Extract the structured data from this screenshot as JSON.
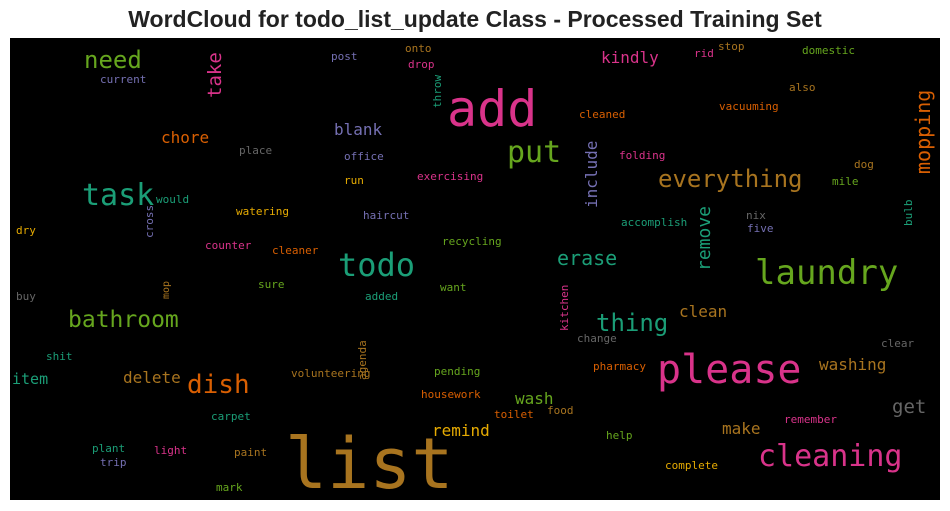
{
  "title": "WordCloud for todo_list_update Class - Processed Training Set",
  "words": [
    {
      "text": "list",
      "color": "#a8741f"
    },
    {
      "text": "add",
      "color": "#d9338a"
    },
    {
      "text": "please",
      "color": "#d9338a"
    },
    {
      "text": "todo",
      "color": "#1b9e77"
    },
    {
      "text": "laundry",
      "color": "#66a61e"
    },
    {
      "text": "task",
      "color": "#1b9e77"
    },
    {
      "text": "cleaning",
      "color": "#d9338a"
    },
    {
      "text": "put",
      "color": "#66a61e"
    },
    {
      "text": "dish",
      "color": "#d95f02"
    },
    {
      "text": "everything",
      "color": "#a8741f"
    },
    {
      "text": "bathroom",
      "color": "#66a61e"
    },
    {
      "text": "thing",
      "color": "#1b9e77"
    },
    {
      "text": "need",
      "color": "#66a61e"
    },
    {
      "text": "mopping",
      "color": "#d95f02"
    },
    {
      "text": "take",
      "color": "#d9338a"
    },
    {
      "text": "remove",
      "color": "#1b9e77"
    },
    {
      "text": "erase",
      "color": "#1b9e77"
    },
    {
      "text": "include",
      "color": "#7570b3"
    },
    {
      "text": "get",
      "color": "#666666"
    },
    {
      "text": "kindly",
      "color": "#d9338a"
    },
    {
      "text": "washing",
      "color": "#a8741f"
    },
    {
      "text": "chore",
      "color": "#d95f02"
    },
    {
      "text": "blank",
      "color": "#7570b3"
    },
    {
      "text": "clean",
      "color": "#a8741f"
    },
    {
      "text": "wash",
      "color": "#66a61e"
    },
    {
      "text": "delete",
      "color": "#a8741f"
    },
    {
      "text": "item",
      "color": "#1b9e77"
    },
    {
      "text": "remind",
      "color": "#e6ab02"
    },
    {
      "text": "make",
      "color": "#a8741f"
    },
    {
      "text": "onto",
      "color": "#a8741f"
    },
    {
      "text": "post",
      "color": "#7570b3"
    },
    {
      "text": "drop",
      "color": "#d9338a"
    },
    {
      "text": "rid",
      "color": "#d9338a"
    },
    {
      "text": "stop",
      "color": "#a8741f"
    },
    {
      "text": "domestic",
      "color": "#66a61e"
    },
    {
      "text": "current",
      "color": "#7570b3"
    },
    {
      "text": "throw",
      "color": "#1b9e77"
    },
    {
      "text": "also",
      "color": "#a8741f"
    },
    {
      "text": "vacuuming",
      "color": "#d95f02"
    },
    {
      "text": "cleaned",
      "color": "#d95f02"
    },
    {
      "text": "place",
      "color": "#666666"
    },
    {
      "text": "office",
      "color": "#7570b3"
    },
    {
      "text": "folding",
      "color": "#d9338a"
    },
    {
      "text": "dog",
      "color": "#a8741f"
    },
    {
      "text": "run",
      "color": "#e6ab02"
    },
    {
      "text": "exercising",
      "color": "#d9338a"
    },
    {
      "text": "mile",
      "color": "#66a61e"
    },
    {
      "text": "would",
      "color": "#1b9e77"
    },
    {
      "text": "watering",
      "color": "#e6ab02"
    },
    {
      "text": "haircut",
      "color": "#7570b3"
    },
    {
      "text": "accomplish",
      "color": "#1b9e77"
    },
    {
      "text": "nix",
      "color": "#666666"
    },
    {
      "text": "five",
      "color": "#7570b3"
    },
    {
      "text": "bulb",
      "color": "#1b9e77"
    },
    {
      "text": "dry",
      "color": "#e6ab02"
    },
    {
      "text": "cross",
      "color": "#7570b3"
    },
    {
      "text": "counter",
      "color": "#d9338a"
    },
    {
      "text": "cleaner",
      "color": "#d95f02"
    },
    {
      "text": "recycling",
      "color": "#66a61e"
    },
    {
      "text": "mop",
      "color": "#a8741f"
    },
    {
      "text": "sure",
      "color": "#66a61e"
    },
    {
      "text": "want",
      "color": "#66a61e"
    },
    {
      "text": "buy",
      "color": "#666666"
    },
    {
      "text": "added",
      "color": "#1b9e77"
    },
    {
      "text": "kitchen",
      "color": "#d9338a"
    },
    {
      "text": "change",
      "color": "#666666"
    },
    {
      "text": "clear",
      "color": "#666666"
    },
    {
      "text": "shit",
      "color": "#1b9e77"
    },
    {
      "text": "agenda",
      "color": "#a8741f"
    },
    {
      "text": "volunteering",
      "color": "#a8741f"
    },
    {
      "text": "pending",
      "color": "#66a61e"
    },
    {
      "text": "pharmacy",
      "color": "#d95f02"
    },
    {
      "text": "housework",
      "color": "#d95f02"
    },
    {
      "text": "toilet",
      "color": "#d95f02"
    },
    {
      "text": "food",
      "color": "#a8741f"
    },
    {
      "text": "carpet",
      "color": "#1b9e77"
    },
    {
      "text": "remember",
      "color": "#d9338a"
    },
    {
      "text": "plant",
      "color": "#1b9e77"
    },
    {
      "text": "light",
      "color": "#d9338a"
    },
    {
      "text": "paint",
      "color": "#a8741f"
    },
    {
      "text": "help",
      "color": "#66a61e"
    },
    {
      "text": "trip",
      "color": "#7570b3"
    },
    {
      "text": "complete",
      "color": "#e6ab02"
    },
    {
      "text": "mark",
      "color": "#66a61e"
    }
  ]
}
